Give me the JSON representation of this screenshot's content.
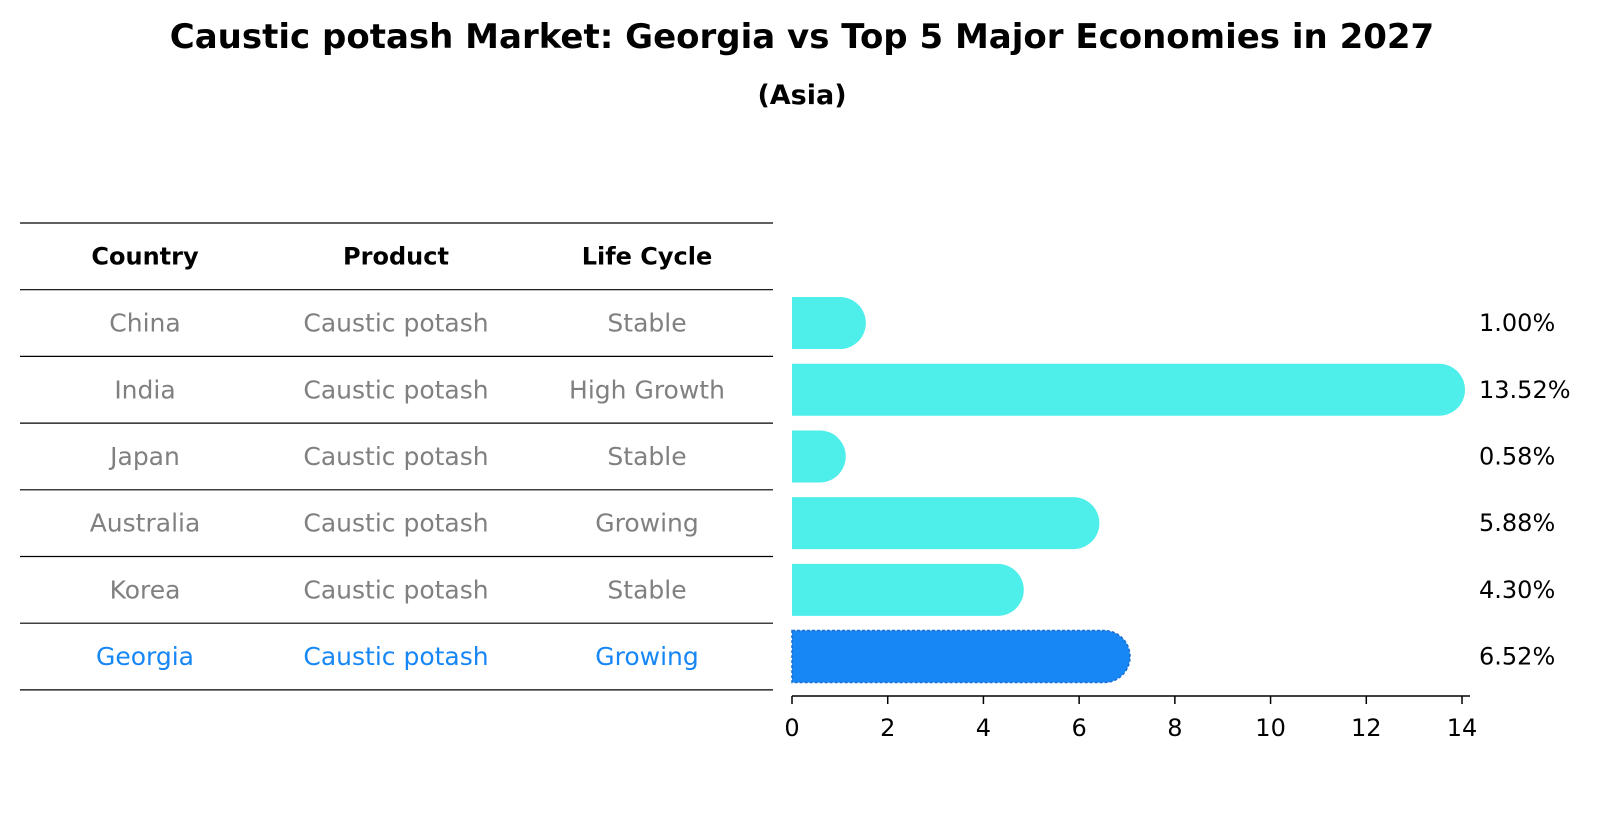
{
  "chart_data": {
    "type": "bar",
    "orientation": "horizontal",
    "title": "Caustic potash Market: Georgia vs Top 5 Major Economies in 2027",
    "subtitle": "(Asia)",
    "table": {
      "headers": [
        "Country",
        "Product",
        "Life Cycle"
      ],
      "rows": [
        {
          "country": "China",
          "product": "Caustic potash",
          "life_cycle": "Stable",
          "highlight": false
        },
        {
          "country": "India",
          "product": "Caustic potash",
          "life_cycle": "High Growth",
          "highlight": false
        },
        {
          "country": "Japan",
          "product": "Caustic potash",
          "life_cycle": "Stable",
          "highlight": false
        },
        {
          "country": "Australia",
          "product": "Caustic potash",
          "life_cycle": "Growing",
          "highlight": false
        },
        {
          "country": "Korea",
          "product": "Caustic potash",
          "life_cycle": "Stable",
          "highlight": false
        },
        {
          "country": "Georgia",
          "product": "Caustic potash",
          "life_cycle": "Growing",
          "highlight": true
        }
      ]
    },
    "categories": [
      "China",
      "India",
      "Japan",
      "Australia",
      "Korea",
      "Georgia"
    ],
    "values": [
      1.0,
      13.52,
      0.58,
      5.88,
      4.3,
      6.52
    ],
    "value_labels": [
      "1.00%",
      "13.52%",
      "0.58%",
      "5.88%",
      "4.30%",
      "6.52%"
    ],
    "xlim": [
      0,
      14
    ],
    "xticks": [
      0,
      2,
      4,
      6,
      8,
      10,
      12,
      14
    ],
    "xlabel": "",
    "ylabel": "",
    "grid": false,
    "colors": {
      "bar": "#4eeeea",
      "highlight_bar": "#1787f5",
      "text": "#808080",
      "highlight_text": "#1787f5",
      "axis": "#000000"
    }
  }
}
